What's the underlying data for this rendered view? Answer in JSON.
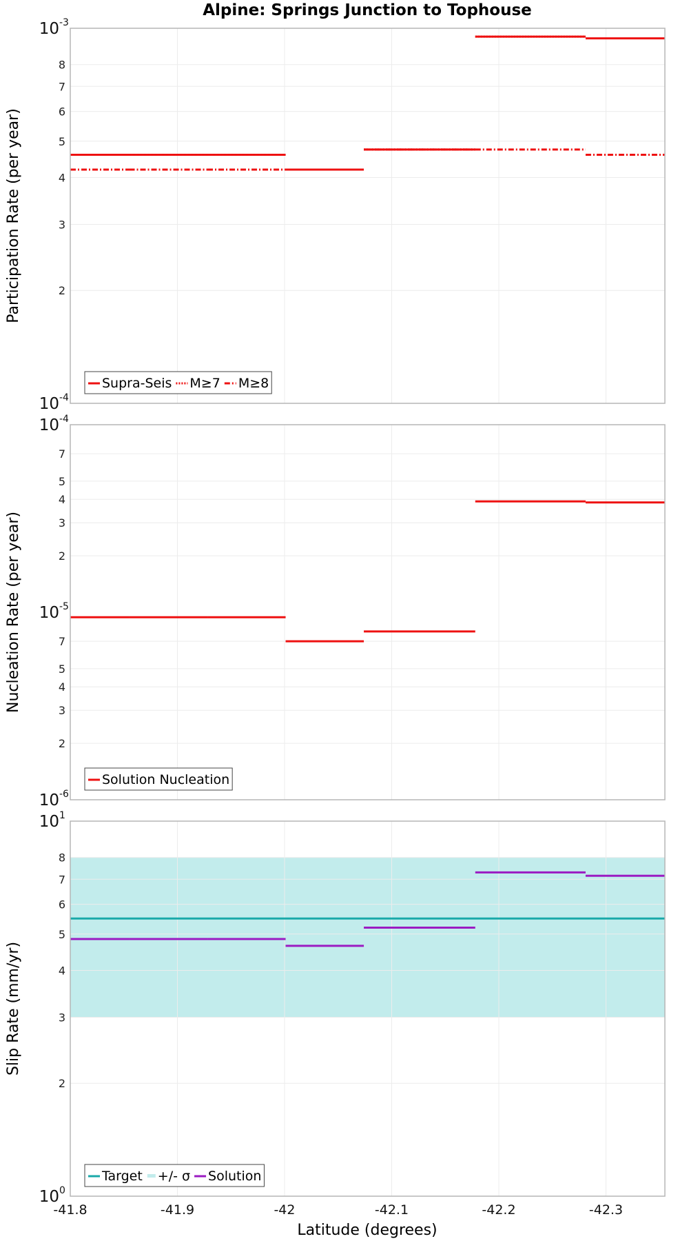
{
  "title": "Alpine: Springs Junction to Tophouse",
  "x_axis": {
    "label": "Latitude (degrees)",
    "range": [
      -41.8,
      -42.355
    ],
    "ticks": [
      -41.8,
      -41.9,
      -42,
      -42.1,
      -42.2,
      -42.3
    ],
    "tick_labels": [
      "-41.8",
      "-41.9",
      "-42",
      "-42.1",
      "-42.2",
      "-42.3"
    ]
  },
  "colors": {
    "red": "#ee1111",
    "target": "#1aa9a9",
    "band": "#c2ecec",
    "solution": "#9b1bc2",
    "grid": "#ececec",
    "frame": "#b5b5b5"
  },
  "chart_data": [
    {
      "type": "line",
      "scale": "log",
      "ylabel": "Participation Rate (per year)",
      "ylim": [
        0.0001,
        0.001
      ],
      "major_ticks": [
        {
          "base": "10",
          "exp": "-4",
          "value": 0.0001
        },
        {
          "base": "10",
          "exp": "-3",
          "value": 0.001
        }
      ],
      "minor_ticks": [
        {
          "label": "2",
          "value": 0.0002
        },
        {
          "label": "3",
          "value": 0.0003
        },
        {
          "label": "4",
          "value": 0.0004
        },
        {
          "label": "5",
          "value": 0.0005
        },
        {
          "label": "6",
          "value": 0.0006
        },
        {
          "label": "7",
          "value": 0.0007
        },
        {
          "label": "8",
          "value": 0.0008
        }
      ],
      "legend": {
        "position": "bottom-left",
        "entries": [
          {
            "label": "Supra-Seis",
            "style": "solid",
            "color": "#ee1111"
          },
          {
            "label": "M≥7",
            "style": "dotted",
            "color": "#ee1111"
          },
          {
            "label": "M≥8",
            "style": "dashdot",
            "color": "#ee1111"
          }
        ]
      },
      "series": [
        {
          "name": "Supra-Seis",
          "style": "solid",
          "color": "#ee1111",
          "segments": [
            {
              "x0": -41.8,
              "x1": -41.855,
              "y": 0.00046
            },
            {
              "x0": -41.855,
              "x1": -41.928,
              "y": 0.00046
            },
            {
              "x0": -41.928,
              "x1": -42.001,
              "y": 0.00046
            },
            {
              "x0": -42.001,
              "x1": -42.074,
              "y": 0.00042
            },
            {
              "x0": -42.074,
              "x1": -42.178,
              "y": 0.000475
            },
            {
              "x0": -42.178,
              "x1": -42.281,
              "y": 0.00095
            },
            {
              "x0": -42.281,
              "x1": -42.355,
              "y": 0.00094
            }
          ]
        },
        {
          "name": "M≥7",
          "style": "dotted",
          "color": "#ee1111",
          "segments": [
            {
              "x0": -41.8,
              "x1": -41.855,
              "y": 0.00046
            },
            {
              "x0": -41.855,
              "x1": -41.928,
              "y": 0.00046
            },
            {
              "x0": -41.928,
              "x1": -42.001,
              "y": 0.00046
            },
            {
              "x0": -42.074,
              "x1": -42.178,
              "y": 0.000475
            },
            {
              "x0": -42.178,
              "x1": -42.281,
              "y": 0.00095
            }
          ]
        },
        {
          "name": "M≥8",
          "style": "dashdot",
          "color": "#ee1111",
          "segments": [
            {
              "x0": -41.8,
              "x1": -41.855,
              "y": 0.00042
            },
            {
              "x0": -41.855,
              "x1": -41.928,
              "y": 0.00042
            },
            {
              "x0": -41.928,
              "x1": -42.001,
              "y": 0.00042
            },
            {
              "x0": -42.074,
              "x1": -42.178,
              "y": 0.000475
            },
            {
              "x0": -42.178,
              "x1": -42.281,
              "y": 0.000475
            },
            {
              "x0": -42.281,
              "x1": -42.355,
              "y": 0.00046
            }
          ]
        }
      ]
    },
    {
      "type": "line",
      "scale": "log",
      "ylabel": "Nucleation Rate (per year)",
      "ylim": [
        1e-06,
        0.0001
      ],
      "major_ticks": [
        {
          "base": "10",
          "exp": "-6",
          "value": 1e-06
        },
        {
          "base": "10",
          "exp": "-5",
          "value": 1e-05
        },
        {
          "base": "10",
          "exp": "-4",
          "value": 0.0001
        }
      ],
      "minor_ticks": [
        {
          "label": "2",
          "value": 2e-06
        },
        {
          "label": "3",
          "value": 3e-06
        },
        {
          "label": "4",
          "value": 4e-06
        },
        {
          "label": "5",
          "value": 5e-06
        },
        {
          "label": "7",
          "value": 7e-06
        },
        {
          "label": "2",
          "value": 2e-05
        },
        {
          "label": "3",
          "value": 3e-05
        },
        {
          "label": "4",
          "value": 4e-05
        },
        {
          "label": "5",
          "value": 5e-05
        },
        {
          "label": "7",
          "value": 7e-05
        }
      ],
      "legend": {
        "position": "bottom-left",
        "entries": [
          {
            "label": "Solution Nucleation",
            "style": "solid",
            "color": "#ee1111"
          }
        ]
      },
      "series": [
        {
          "name": "Solution Nucleation",
          "style": "solid",
          "color": "#ee1111",
          "segments": [
            {
              "x0": -41.8,
              "x1": -41.855,
              "y": 9.4e-06
            },
            {
              "x0": -41.855,
              "x1": -41.928,
              "y": 9.4e-06
            },
            {
              "x0": -41.928,
              "x1": -42.001,
              "y": 9.4e-06
            },
            {
              "x0": -42.001,
              "x1": -42.074,
              "y": 7e-06
            },
            {
              "x0": -42.074,
              "x1": -42.178,
              "y": 7.9e-06
            },
            {
              "x0": -42.178,
              "x1": -42.281,
              "y": 3.9e-05
            },
            {
              "x0": -42.281,
              "x1": -42.355,
              "y": 3.85e-05
            }
          ]
        }
      ]
    },
    {
      "type": "line",
      "scale": "log",
      "ylabel": "Slip Rate (mm/yr)",
      "ylim": [
        1,
        10
      ],
      "major_ticks": [
        {
          "base": "10",
          "exp": "0",
          "value": 1
        },
        {
          "base": "10",
          "exp": "1",
          "value": 10
        }
      ],
      "minor_ticks": [
        {
          "label": "2",
          "value": 2
        },
        {
          "label": "3",
          "value": 3
        },
        {
          "label": "4",
          "value": 4
        },
        {
          "label": "5",
          "value": 5
        },
        {
          "label": "6",
          "value": 6
        },
        {
          "label": "7",
          "value": 7
        },
        {
          "label": "8",
          "value": 8
        }
      ],
      "band": {
        "name": "+/- σ",
        "y_low": 3,
        "y_high": 8,
        "color": "#c2ecec"
      },
      "legend": {
        "position": "bottom-left",
        "entries": [
          {
            "label": "Target",
            "style": "solid",
            "color": "#1aa9a9"
          },
          {
            "label": "+/- σ",
            "style": "band",
            "color": "#c2ecec"
          },
          {
            "label": "Solution",
            "style": "solid",
            "color": "#9b1bc2"
          }
        ]
      },
      "series": [
        {
          "name": "Target",
          "style": "solid",
          "color": "#1aa9a9",
          "segments": [
            {
              "x0": -41.8,
              "x1": -42.355,
              "y": 5.5
            }
          ]
        },
        {
          "name": "Solution",
          "style": "solid",
          "color": "#9b1bc2",
          "segments": [
            {
              "x0": -41.8,
              "x1": -41.855,
              "y": 4.85
            },
            {
              "x0": -41.855,
              "x1": -41.928,
              "y": 4.85
            },
            {
              "x0": -41.928,
              "x1": -42.001,
              "y": 4.85
            },
            {
              "x0": -42.001,
              "x1": -42.074,
              "y": 4.65
            },
            {
              "x0": -42.074,
              "x1": -42.178,
              "y": 5.2
            },
            {
              "x0": -42.178,
              "x1": -42.281,
              "y": 7.3
            },
            {
              "x0": -42.281,
              "x1": -42.355,
              "y": 7.15
            }
          ]
        }
      ]
    }
  ]
}
